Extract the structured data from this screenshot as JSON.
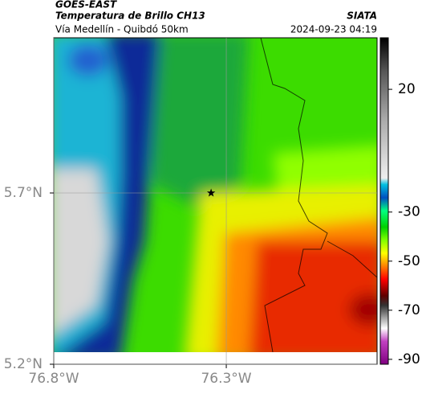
{
  "header": {
    "satellite": "GOES-EAST",
    "product": "Temperatura de Brillo CH13",
    "source": "SIATA",
    "route": "Vía Medellín - Quibdó 50km",
    "datetime": "2024-09-23 04:19"
  },
  "map": {
    "lonlim": [
      -76.8,
      -75.863
    ],
    "latlim": [
      5.2,
      6.153
    ],
    "lonticks": [
      {
        "value": -76.8,
        "label": "76.8°W"
      },
      {
        "value": -76.3,
        "label": "76.3°W"
      }
    ],
    "latticks": [
      {
        "value": 5.2,
        "label": "5.2°N"
      },
      {
        "value": 5.7,
        "label": "5.7°N"
      }
    ],
    "grid": true,
    "marker": {
      "lon": -76.344,
      "lat": 5.7
    }
  },
  "colorbar": {
    "clim": [
      -92,
      41
    ],
    "ticks": [
      20,
      -30,
      -50,
      -70,
      -90
    ]
  }
}
